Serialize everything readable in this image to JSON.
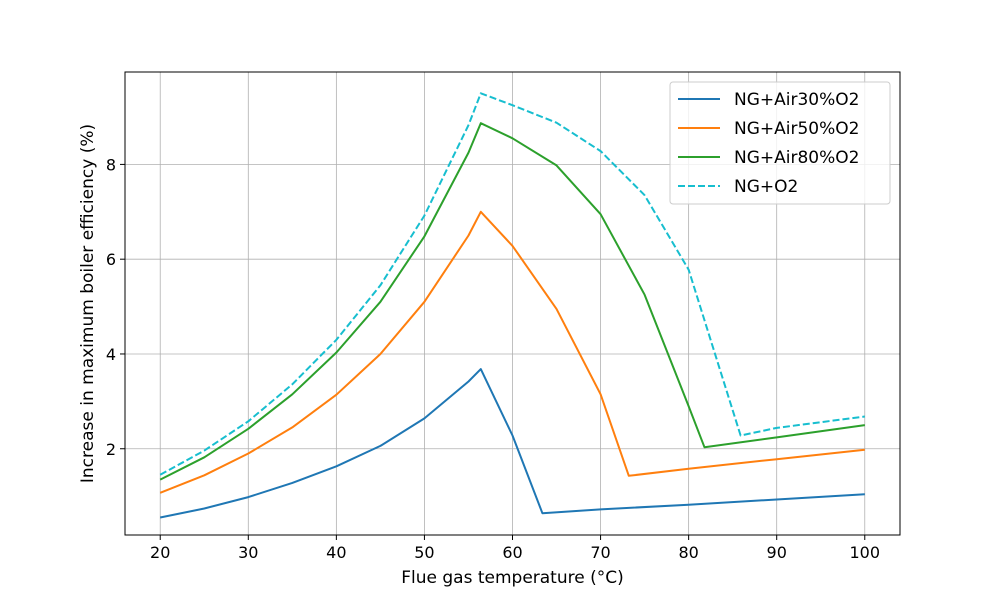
{
  "chart_data": {
    "type": "line",
    "title": "",
    "xlabel": "Flue gas temperature (°C)",
    "ylabel": "Increase in maximum boiler efficiency (%)",
    "xlim": [
      16,
      104
    ],
    "ylim": [
      0.18,
      9.95
    ],
    "xticks": [
      20,
      30,
      40,
      50,
      60,
      70,
      80,
      90,
      100
    ],
    "yticks": [
      2,
      4,
      6,
      8
    ],
    "grid": true,
    "legend_position": "top-right",
    "series": [
      {
        "name": "NG+Air30%O2",
        "color": "#1f77b4",
        "dashed": false,
        "x": [
          20,
          25,
          30,
          35,
          40,
          45,
          50,
          55,
          56.4,
          60,
          63.4,
          70,
          80,
          90,
          100
        ],
        "y": [
          0.55,
          0.74,
          0.98,
          1.28,
          1.63,
          2.06,
          2.64,
          3.42,
          3.68,
          2.28,
          0.64,
          0.72,
          0.82,
          0.93,
          1.04
        ]
      },
      {
        "name": "NG+Air50%O2",
        "color": "#ff7f0e",
        "dashed": false,
        "x": [
          20,
          25,
          30,
          35,
          40,
          45,
          50,
          55,
          56.4,
          60,
          65,
          70,
          73.2,
          80,
          90,
          100
        ],
        "y": [
          1.07,
          1.44,
          1.9,
          2.45,
          3.14,
          4.0,
          5.1,
          6.5,
          7.0,
          6.28,
          4.95,
          3.15,
          1.43,
          1.58,
          1.78,
          1.98
        ]
      },
      {
        "name": "NG+Air80%O2",
        "color": "#2ca02c",
        "dashed": false,
        "x": [
          20,
          25,
          30,
          35,
          40,
          45,
          50,
          55,
          56.4,
          60,
          65,
          70,
          75,
          80,
          81.8,
          90,
          100
        ],
        "y": [
          1.35,
          1.82,
          2.42,
          3.15,
          4.03,
          5.1,
          6.48,
          8.25,
          8.87,
          8.55,
          7.98,
          6.95,
          5.25,
          2.9,
          2.03,
          2.24,
          2.5
        ]
      },
      {
        "name": "NG+O2",
        "color": "#17becf",
        "dashed": true,
        "x": [
          20,
          25,
          30,
          35,
          40,
          45,
          50,
          55,
          56.4,
          60,
          65,
          70,
          75,
          80,
          85.9,
          90,
          100
        ],
        "y": [
          1.45,
          1.96,
          2.58,
          3.36,
          4.3,
          5.45,
          6.92,
          8.83,
          9.5,
          9.25,
          8.88,
          8.28,
          7.35,
          5.78,
          2.28,
          2.44,
          2.68
        ]
      }
    ]
  }
}
